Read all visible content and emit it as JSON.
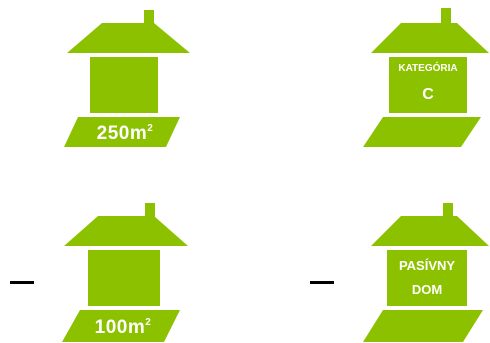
{
  "colors": {
    "house_green": "#8cc100",
    "text_white": "#ffffff",
    "dash_black": "#000000"
  },
  "houses": [
    {
      "label_main": "250m",
      "label_sup": "2"
    },
    {
      "label_line1": "KATEGÓRIA",
      "label_line2": "C"
    },
    {
      "label_main": "100m",
      "label_sup": "2"
    },
    {
      "label_line1": "PASÍVNY",
      "label_line2": "DOM"
    }
  ],
  "dash_symbol": "–"
}
